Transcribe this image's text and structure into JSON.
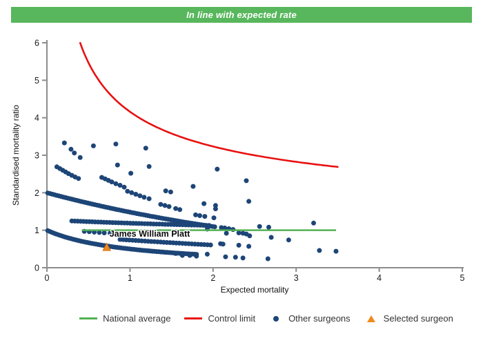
{
  "banner": {
    "text": "In line with expected rate",
    "bg": "#58b75c",
    "fg": "#ffffff"
  },
  "chart_data": {
    "type": "scatter",
    "title": "In line with expected rate",
    "xlabel": "Expected mortality",
    "ylabel": "Standardised mortality ratio",
    "xlim": [
      0,
      5
    ],
    "ylim": [
      0,
      6
    ],
    "x_ticks": [
      0,
      1,
      2,
      3,
      4,
      5
    ],
    "y_ticks": [
      0,
      1,
      2,
      3,
      4,
      5,
      6
    ],
    "grid": false,
    "legend_position": "bottom",
    "national_average": {
      "label": "National average",
      "y": 1,
      "x_start": 0.42,
      "x_end": 3.48,
      "color": "#52b152"
    },
    "control_limit": {
      "label": "Control limit",
      "fn": "funnel",
      "c": 1,
      "a": 3.16,
      "x_start": 0.4,
      "x_end": 3.5,
      "n": 120,
      "color": "#e81010"
    },
    "other_surgeons": {
      "label": "Other surgeons",
      "color": "#1d4577",
      "dense_bands": [
        {
          "fn": "reciprocal",
          "a": 1.0,
          "k": 0,
          "c": 0,
          "x_start": 0.01,
          "x_end": 1.8,
          "n": 72
        },
        {
          "fn": "exp",
          "a": 2.0,
          "k": 0.3,
          "c": 0,
          "x_start": 0.01,
          "x_end": 2.02,
          "n": 76
        },
        {
          "fn": "exp",
          "a": 0.28,
          "k": 0.4,
          "c": 1,
          "x_start": 0.3,
          "x_end": 1.95,
          "n": 48
        },
        {
          "fn": "exp",
          "a": 0.9,
          "k": 0.2,
          "c": 0,
          "x_start": 0.88,
          "x_end": 1.97,
          "n": 30
        }
      ],
      "points": [
        [
          0.12,
          2.69
        ],
        [
          0.155,
          2.645
        ],
        [
          0.19,
          2.6
        ],
        [
          0.225,
          2.555
        ],
        [
          0.26,
          2.51
        ],
        [
          0.3,
          2.465
        ],
        [
          0.34,
          2.42
        ],
        [
          0.38,
          2.38
        ],
        [
          0.66,
          2.41
        ],
        [
          0.7,
          2.37
        ],
        [
          0.74,
          2.33
        ],
        [
          0.78,
          2.29
        ],
        [
          0.83,
          2.24
        ],
        [
          0.88,
          2.2
        ],
        [
          0.93,
          2.15
        ],
        [
          0.97,
          2.04
        ],
        [
          1.02,
          2.0
        ],
        [
          1.07,
          1.96
        ],
        [
          1.12,
          1.92
        ],
        [
          1.17,
          1.88
        ],
        [
          1.23,
          1.84
        ],
        [
          1.37,
          1.69
        ],
        [
          1.42,
          1.66
        ],
        [
          1.47,
          1.63
        ],
        [
          1.55,
          1.58
        ],
        [
          1.6,
          1.55
        ],
        [
          1.79,
          1.41
        ],
        [
          1.84,
          1.39
        ],
        [
          1.9,
          1.37
        ],
        [
          2.1,
          1.07
        ],
        [
          2.14,
          1.06
        ],
        [
          2.19,
          1.04
        ],
        [
          2.24,
          1.02
        ],
        [
          0.45,
          0.97
        ],
        [
          0.51,
          0.96
        ],
        [
          0.57,
          0.95
        ],
        [
          0.63,
          0.94
        ],
        [
          0.69,
          0.93
        ],
        [
          0.76,
          0.92
        ],
        [
          0.21,
          3.33
        ],
        [
          0.29,
          3.16
        ],
        [
          0.33,
          3.06
        ],
        [
          0.4,
          2.94
        ],
        [
          0.56,
          3.25
        ],
        [
          0.83,
          3.3
        ],
        [
          1.19,
          3.19
        ],
        [
          0.85,
          2.74
        ],
        [
          1.01,
          2.52
        ],
        [
          1.23,
          2.7
        ],
        [
          2.05,
          2.63
        ],
        [
          2.4,
          2.32
        ],
        [
          2.43,
          1.77
        ],
        [
          1.43,
          2.05
        ],
        [
          1.49,
          2.02
        ],
        [
          1.76,
          2.17
        ],
        [
          1.89,
          1.71
        ],
        [
          2.03,
          1.66
        ],
        [
          1.93,
          1.03
        ],
        [
          2.01,
          1.33
        ],
        [
          2.03,
          1.57
        ],
        [
          2.16,
          0.92
        ],
        [
          2.31,
          0.93
        ],
        [
          2.36,
          0.92
        ],
        [
          2.4,
          0.9
        ],
        [
          2.44,
          0.85
        ],
        [
          2.56,
          1.1
        ],
        [
          2.67,
          1.08
        ],
        [
          2.7,
          0.81
        ],
        [
          2.91,
          0.74
        ],
        [
          3.21,
          1.19
        ],
        [
          2.09,
          0.64
        ],
        [
          2.12,
          0.63
        ],
        [
          2.31,
          0.6
        ],
        [
          2.43,
          0.57
        ],
        [
          1.93,
          0.36
        ],
        [
          2.15,
          0.29
        ],
        [
          2.27,
          0.28
        ],
        [
          2.36,
          0.26
        ],
        [
          2.66,
          0.24
        ],
        [
          3.28,
          0.46
        ],
        [
          3.48,
          0.44
        ],
        [
          1.63,
          0.33
        ],
        [
          1.72,
          0.33
        ],
        [
          1.8,
          0.31
        ],
        [
          1.55,
          0.38
        ]
      ]
    },
    "selected_surgeon": {
      "label": "Selected surgeon",
      "name": "James William Platt",
      "x": 0.72,
      "y": 0.55,
      "color": "#ef8a1d",
      "edge": "#cf6f10"
    }
  },
  "legend": {
    "items": [
      {
        "label": "National average",
        "marker": "line",
        "color": "#52b152"
      },
      {
        "label": "Control limit",
        "marker": "line",
        "color": "#e81010"
      },
      {
        "label": "Other surgeons",
        "marker": "dot",
        "color": "#1d4577"
      },
      {
        "label": "Selected surgeon",
        "marker": "triangle",
        "color": "#ef8a1d"
      }
    ]
  }
}
